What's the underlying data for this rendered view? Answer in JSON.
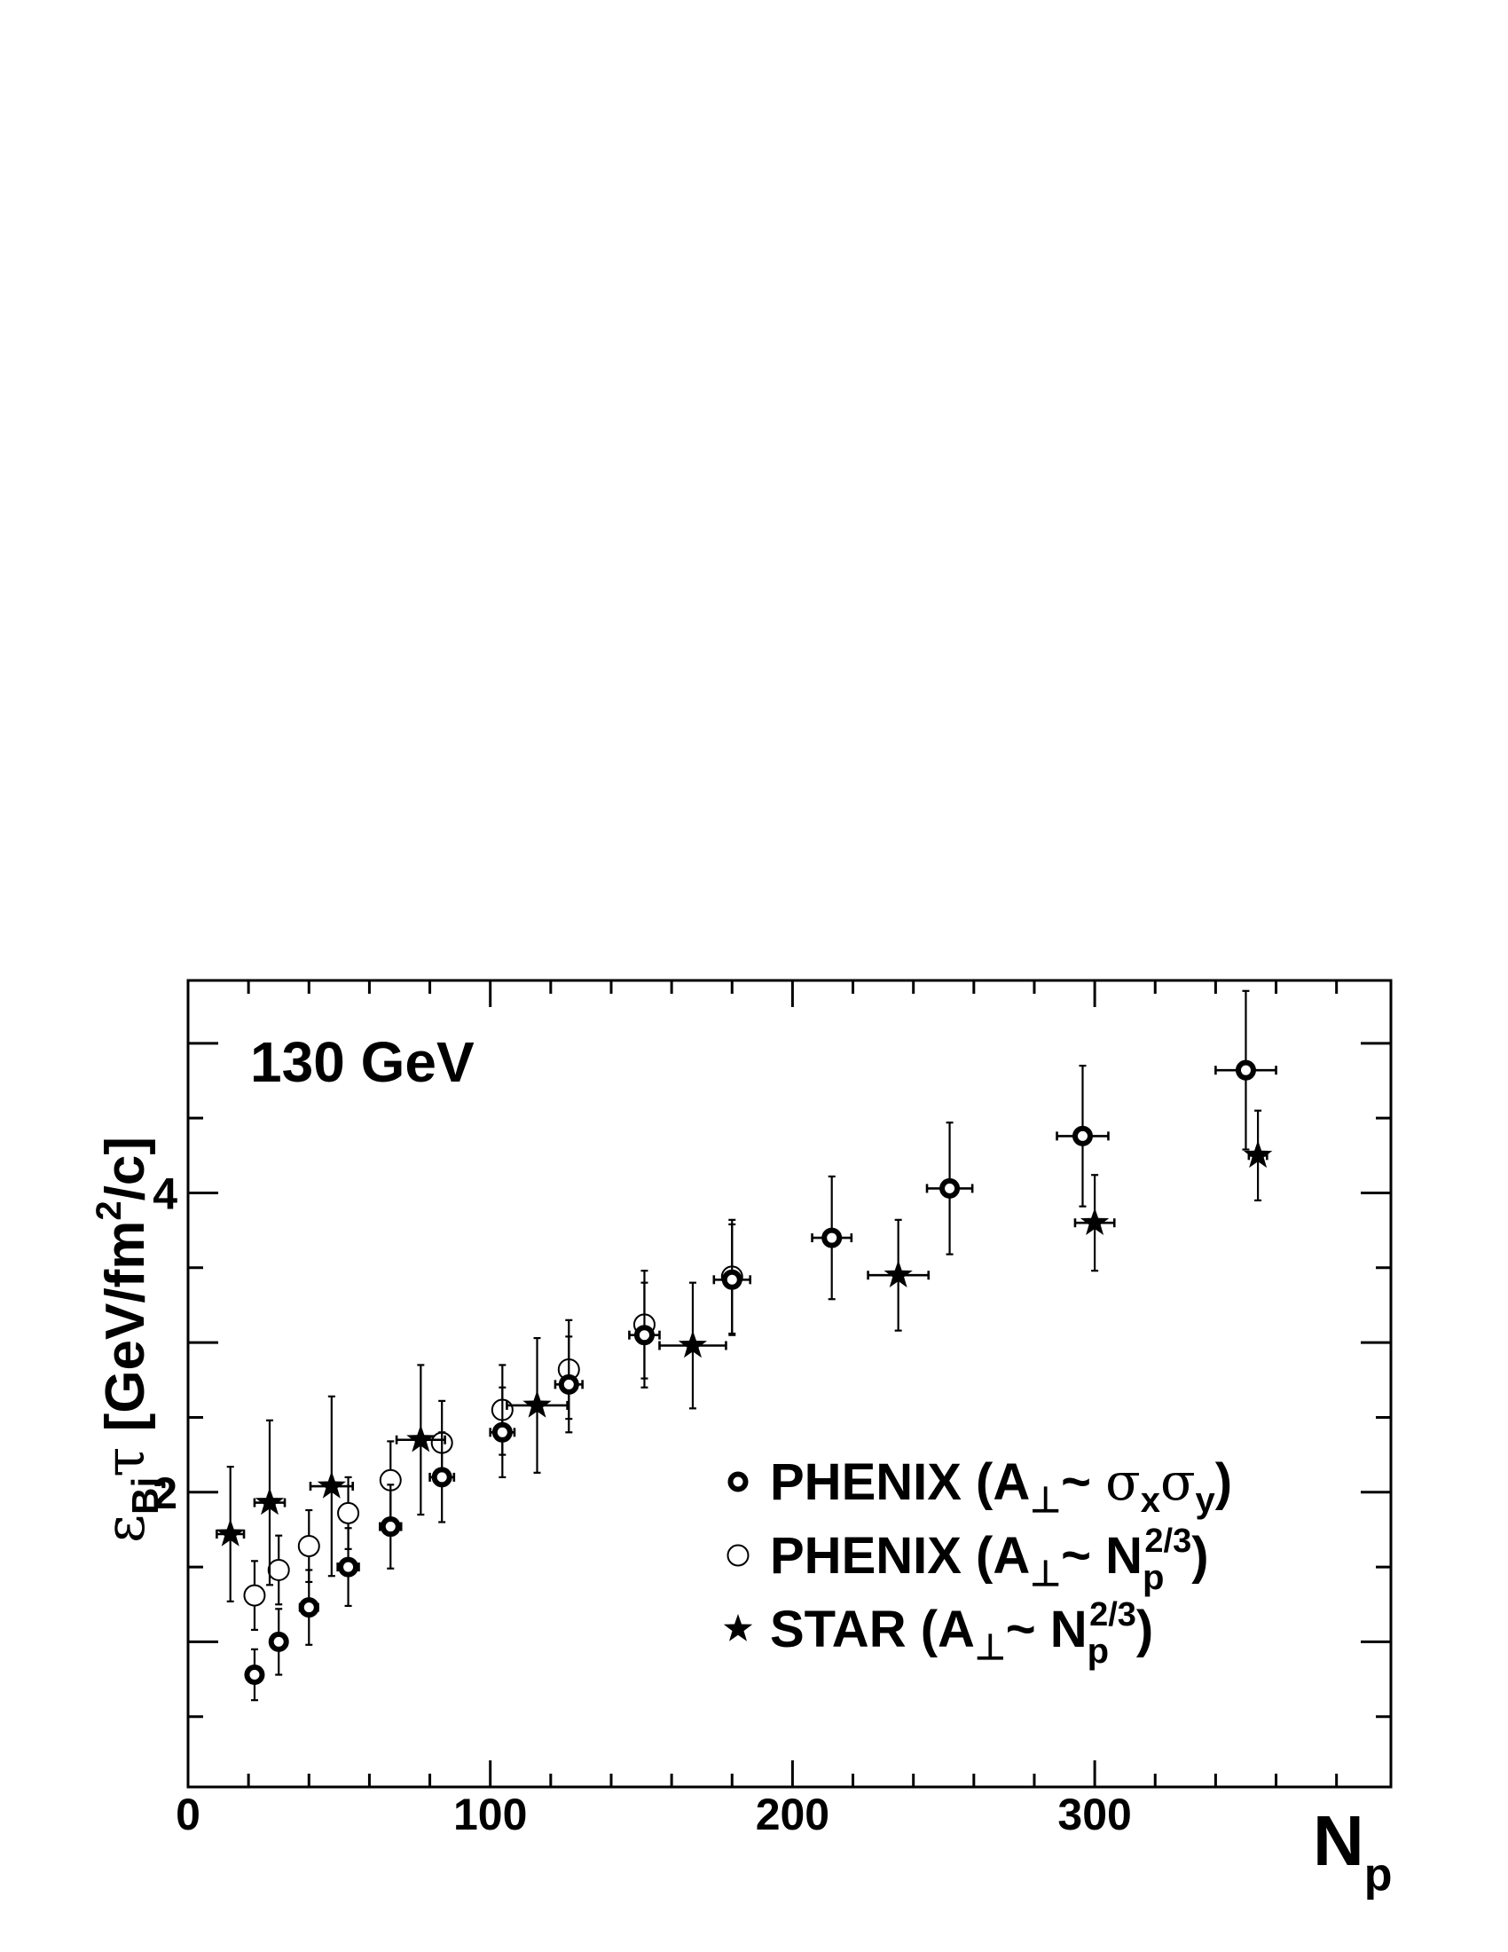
{
  "chart_data": {
    "type": "scatter",
    "annotation": "130 GeV",
    "xlabel": "N",
    "xlabel_sub": "p",
    "ylabel": {
      "symbol": "ε",
      "sub": "Bj",
      "tau": "τ",
      "units_pre": " [GeV/fm",
      "units_sup": "2",
      "units_post": "/c]"
    },
    "xlim": [
      0,
      398
    ],
    "ylim": [
      0.03,
      5.42
    ],
    "x_ticks": [
      0,
      100,
      200,
      300
    ],
    "x_tick_labels": [
      "0",
      "100",
      "200",
      "300"
    ],
    "y_ticks": [
      2,
      4
    ],
    "y_tick_labels": [
      "2",
      "4"
    ],
    "grid": false,
    "legend_position": "bottom-right",
    "legend": [
      {
        "marker": "thick-circle",
        "parts": [
          [
            "t",
            "PHENIX (A"
          ],
          [
            "sub",
            "⊥"
          ],
          [
            "t",
            "~ "
          ],
          [
            "g",
            "σ"
          ],
          [
            "sub",
            "x"
          ],
          [
            "g",
            "σ"
          ],
          [
            "sub",
            "y"
          ],
          [
            "t",
            ")"
          ]
        ]
      },
      {
        "marker": "open-circle",
        "parts": [
          [
            "t",
            "PHENIX (A"
          ],
          [
            "sub",
            "⊥"
          ],
          [
            "t",
            "~ N"
          ],
          [
            "subsup",
            "p",
            "2/3"
          ],
          [
            "t",
            ")"
          ]
        ]
      },
      {
        "marker": "star",
        "parts": [
          [
            "t",
            "STAR (A"
          ],
          [
            "sub",
            "⊥"
          ],
          [
            "t",
            "~ N"
          ],
          [
            "subsup",
            "p",
            "2/3"
          ],
          [
            "t",
            ")"
          ]
        ]
      }
    ],
    "series": [
      {
        "marker": "thick-circle",
        "points": [
          {
            "x": 22,
            "y": 0.78,
            "xerr": 2,
            "yerr": 0.17
          },
          {
            "x": 30,
            "y": 1.0,
            "xerr": 2.5,
            "yerr": 0.22
          },
          {
            "x": 40,
            "y": 1.23,
            "xerr": 3,
            "yerr": 0.25
          },
          {
            "x": 53,
            "y": 1.5,
            "xerr": 3.5,
            "yerr": 0.26
          },
          {
            "x": 67,
            "y": 1.77,
            "xerr": 3.5,
            "yerr": 0.28
          },
          {
            "x": 84,
            "y": 2.1,
            "xerr": 4,
            "yerr": 0.3
          },
          {
            "x": 104,
            "y": 2.4,
            "xerr": 4,
            "yerr": 0.3
          },
          {
            "x": 126,
            "y": 2.72,
            "xerr": 4.5,
            "yerr": 0.32
          },
          {
            "x": 151,
            "y": 3.05,
            "xerr": 5,
            "yerr": 0.35
          },
          {
            "x": 180,
            "y": 3.42,
            "xerr": 6,
            "yerr": 0.37
          },
          {
            "x": 213,
            "y": 3.7,
            "xerr": 6.5,
            "yerr": 0.41
          },
          {
            "x": 252,
            "y": 4.03,
            "xerr": 7.5,
            "yerr": 0.44
          },
          {
            "x": 296,
            "y": 4.38,
            "xerr": 8.5,
            "yerr": 0.47
          },
          {
            "x": 350,
            "y": 4.82,
            "xerr": 10,
            "yerr": 0.53
          }
        ]
      },
      {
        "marker": "open-circle",
        "points": [
          {
            "x": 22,
            "y": 1.31,
            "xerr": 0,
            "yerr": 0.23
          },
          {
            "x": 30,
            "y": 1.48,
            "xerr": 0,
            "yerr": 0.23
          },
          {
            "x": 40,
            "y": 1.64,
            "xerr": 0,
            "yerr": 0.24
          },
          {
            "x": 53,
            "y": 1.86,
            "xerr": 0,
            "yerr": 0.24
          },
          {
            "x": 67,
            "y": 2.08,
            "xerr": 0,
            "yerr": 0.26
          },
          {
            "x": 84,
            "y": 2.33,
            "xerr": 0,
            "yerr": 0.28
          },
          {
            "x": 104,
            "y": 2.55,
            "xerr": 0,
            "yerr": 0.3
          },
          {
            "x": 126,
            "y": 2.82,
            "xerr": 0,
            "yerr": 0.33
          },
          {
            "x": 151,
            "y": 3.12,
            "xerr": 0,
            "yerr": 0.36
          },
          {
            "x": 180,
            "y": 3.44,
            "xerr": 0,
            "yerr": 0.38
          }
        ]
      },
      {
        "marker": "star",
        "points": [
          {
            "x": 14,
            "y": 1.72,
            "xerr": 4.5,
            "yerr": 0.45
          },
          {
            "x": 27,
            "y": 1.93,
            "xerr": 5,
            "yerr": 0.55
          },
          {
            "x": 47.5,
            "y": 2.04,
            "xerr": 7,
            "yerr": 0.6
          },
          {
            "x": 77,
            "y": 2.35,
            "xerr": 8,
            "yerr": 0.5
          },
          {
            "x": 115.5,
            "y": 2.58,
            "xerr": 10,
            "yerr": 0.45
          },
          {
            "x": 167,
            "y": 2.98,
            "xerr": 11,
            "yerr": 0.42
          },
          {
            "x": 235,
            "y": 3.45,
            "xerr": 10,
            "yerr": 0.37
          },
          {
            "x": 300,
            "y": 3.8,
            "xerr": 6.5,
            "yerr": 0.32
          },
          {
            "x": 354,
            "y": 4.25,
            "xerr": 3,
            "yerr": 0.3
          }
        ]
      }
    ]
  }
}
